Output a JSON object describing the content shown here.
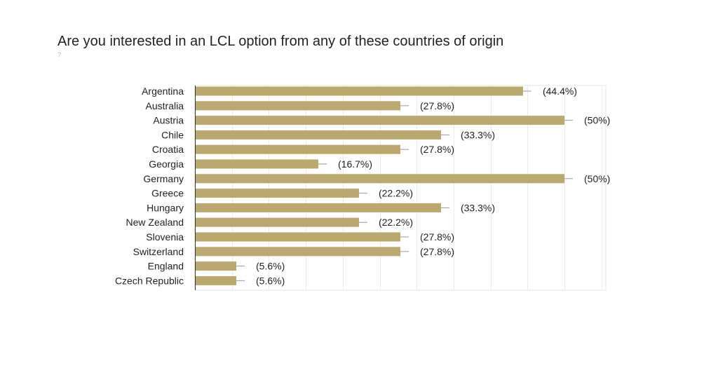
{
  "title": "Are you interested in an LCL option from any of these countries of origin",
  "subtitle": "?",
  "chart_data": {
    "type": "bar",
    "orientation": "horizontal",
    "categories": [
      "Argentina",
      "Australia",
      "Austria",
      "Chile",
      "Croatia",
      "Georgia",
      "Germany",
      "Greece",
      "Hungary",
      "New Zealand",
      "Slovenia",
      "Switzerland",
      "England",
      "Czech Republic"
    ],
    "values": [
      44.4,
      27.8,
      50,
      33.3,
      27.8,
      16.7,
      50,
      22.2,
      33.3,
      22.2,
      27.8,
      27.8,
      5.6,
      5.6
    ],
    "value_labels": [
      "(44.4%)",
      "(27.8%)",
      "(50%)",
      "(33.3%)",
      "(27.8%)",
      "(16.7%)",
      "(50%)",
      "(22.2%)",
      "(33.3%)",
      "(22.2%)",
      "(27.8%)",
      "(27.8%)",
      "(5.6%)",
      "(5.6%)"
    ],
    "unit": "%",
    "xlim": [
      0,
      50
    ],
    "grid": true,
    "legend": "none",
    "color": "#bba86e"
  }
}
